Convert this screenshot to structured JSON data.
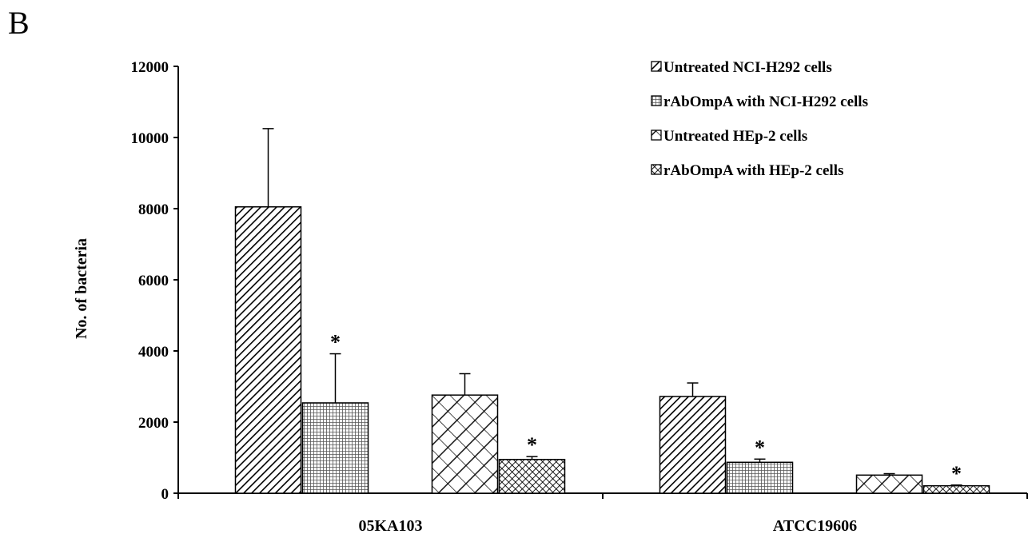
{
  "panel_label": "B",
  "chart_data": {
    "type": "bar",
    "title": "",
    "xlabel": "",
    "ylabel": "No. of bacteria",
    "ylim": [
      0,
      12000
    ],
    "yticks": [
      "0",
      "2000",
      "4000",
      "6000",
      "8000",
      "10000",
      "12000"
    ],
    "grid": false,
    "legend_position": "top-right",
    "categories": [
      "05KA103",
      "ATCC19606"
    ],
    "series": [
      {
        "name": "Untreated NCI-H292 cells",
        "pattern": "diagonal-dense",
        "values": [
          8050,
          2720
        ],
        "errors": [
          2200,
          380
        ],
        "significance": [
          "",
          ""
        ]
      },
      {
        "name": "rAbOmpA with NCI-H292 cells",
        "pattern": "fine-grid",
        "values": [
          2540,
          870
        ],
        "errors": [
          1380,
          90
        ],
        "significance": [
          "*",
          "*"
        ]
      },
      {
        "name": "Untreated HEp-2 cells",
        "pattern": "diagonal-sparse",
        "values": [
          2760,
          510
        ],
        "errors": [
          600,
          40
        ],
        "significance": [
          "",
          ""
        ]
      },
      {
        "name": "rAbOmpA with HEp-2 cells",
        "pattern": "crosshatch",
        "values": [
          950,
          210
        ],
        "errors": [
          80,
          20
        ],
        "significance": [
          "*",
          "*"
        ]
      }
    ]
  }
}
